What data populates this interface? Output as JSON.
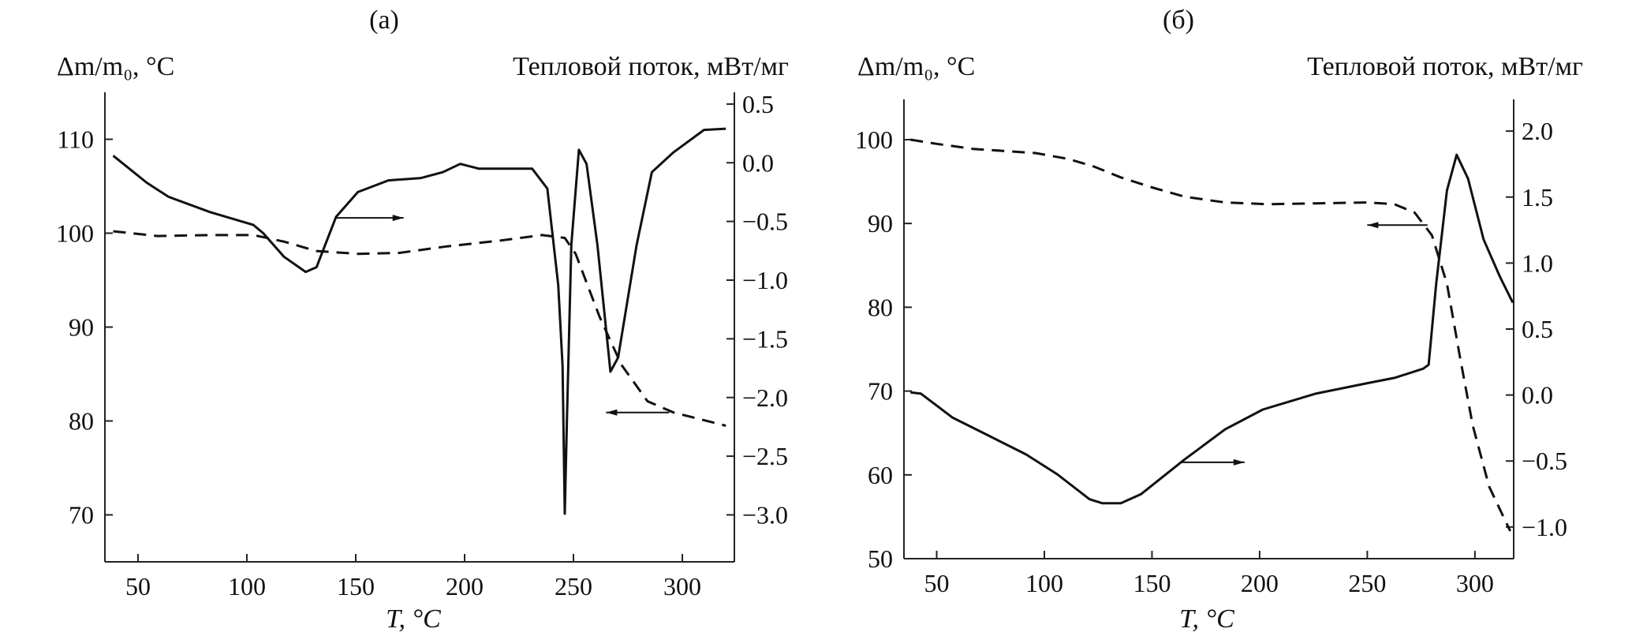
{
  "chart_data": [
    {
      "type": "line",
      "title": "(a)",
      "xlabel": "T, °C",
      "ylabel_left": "Δm/m₀, °C",
      "ylabel_right": "Тепловой поток, мВт/мг",
      "xlim": [
        34.8,
        323.9
      ],
      "ylim_left": [
        65,
        115
      ],
      "ylim_right": [
        -3.4,
        0.6
      ],
      "xticks": [
        50,
        100,
        150,
        200,
        250,
        300
      ],
      "xtick_labels": [
        "50",
        "100",
        "150",
        "200",
        "250",
        "300"
      ],
      "yticks_left": [
        70,
        80,
        90,
        100,
        110
      ],
      "ytick_labels_left": [
        "70",
        "80",
        "90",
        "100",
        "110"
      ],
      "yticks_right": [
        0.5,
        0.0,
        -0.5,
        -1.0,
        -1.5,
        -2.0,
        -2.5,
        -3.0
      ],
      "ytick_labels_right": [
        "0.5",
        "0.0",
        "−0.5",
        "−1.0",
        "−1.5",
        "−2.0",
        "−2.5",
        "−3.0"
      ],
      "grid": false,
      "series": [
        {
          "name": "heat flow",
          "axis": "right",
          "style": "solid",
          "x": [
            38.6,
            54,
            64,
            83,
            103,
            107.5,
            117,
            127,
            132,
            141,
            151,
            165,
            180,
            190,
            198,
            206.5,
            231,
            238,
            243,
            245,
            246,
            247,
            249,
            252.5,
            256,
            261,
            267,
            270.5,
            279,
            286,
            296,
            310,
            320
          ],
          "y": [
            0.06,
            -0.17,
            -0.29,
            -0.42,
            -0.53,
            -0.6,
            -0.8,
            -0.93,
            -0.89,
            -0.46,
            -0.25,
            -0.15,
            -0.13,
            -0.08,
            -0.01,
            -0.05,
            -0.05,
            -0.22,
            -1.04,
            -1.73,
            -2.99,
            -2.2,
            -0.7,
            0.11,
            -0.01,
            -0.7,
            -1.78,
            -1.66,
            -0.7,
            -0.08,
            0.09,
            0.28,
            0.29
          ]
        },
        {
          "name": "mass change",
          "axis": "left",
          "style": "dashed",
          "x": [
            38.6,
            59,
            83,
            103,
            117,
            132,
            151,
            170,
            192,
            216,
            235.5,
            246,
            251,
            262,
            272,
            284,
            296,
            320
          ],
          "y": [
            100.2,
            99.7,
            99.8,
            99.8,
            99.1,
            98.1,
            97.8,
            97.9,
            98.6,
            99.2,
            99.8,
            99.5,
            97.8,
            91.1,
            86.0,
            82.1,
            80.9,
            79.5
          ]
        }
      ],
      "annotations": [
        {
          "type": "arrow",
          "direction": "right",
          "axis": "right",
          "x_from": 141,
          "x_to": 172,
          "y": -0.47
        },
        {
          "type": "arrow",
          "direction": "left",
          "axis": "left",
          "x_from": 294,
          "x_to": 265,
          "y": 80.9
        }
      ]
    },
    {
      "type": "line",
      "title": "(б)",
      "xlabel": "T, °C",
      "ylabel_left": "Δm/m₀, °C",
      "ylabel_right": "Тепловой поток, мВт/мг",
      "xlim": [
        34.8,
        318
      ],
      "ylim_left": [
        50,
        104.8
      ],
      "ylim_right": [
        -1.24,
        2.24
      ],
      "xticks": [
        50,
        100,
        150,
        200,
        250,
        300
      ],
      "xtick_labels": [
        "50",
        "100",
        "150",
        "200",
        "250",
        "300"
      ],
      "yticks_left": [
        50,
        60,
        70,
        80,
        90,
        100
      ],
      "ytick_labels_left": [
        "50",
        "60",
        "70",
        "80",
        "90",
        "100"
      ],
      "yticks_right": [
        2.0,
        1.5,
        1.0,
        0.5,
        0.0,
        -0.5,
        -1.0
      ],
      "ytick_labels_right": [
        "2.0",
        "1.5",
        "1.0",
        "0.5",
        "0.0",
        "−0.5",
        "−1.0"
      ],
      "grid": false,
      "series": [
        {
          "name": "heat flow",
          "axis": "right",
          "style": "solid",
          "x": [
            37.8,
            42.7,
            57.3,
            72,
            91.5,
            106,
            121,
            127,
            135.5,
            145,
            165,
            184,
            201.5,
            226,
            250,
            262.6,
            276,
            278.5,
            282,
            287,
            291.5,
            296.8,
            304,
            311.5,
            317.6
          ],
          "y": [
            0.02,
            0.01,
            -0.17,
            -0.29,
            -0.45,
            -0.6,
            -0.79,
            -0.82,
            -0.82,
            -0.75,
            -0.49,
            -0.26,
            -0.11,
            0.01,
            0.09,
            0.13,
            0.2,
            0.23,
            0.84,
            1.55,
            1.82,
            1.64,
            1.18,
            0.9,
            0.7
          ]
        },
        {
          "name": "mass change",
          "axis": "left",
          "style": "dashed",
          "x": [
            37.8,
            50,
            67,
            96,
            111,
            123,
            135.5,
            150,
            165,
            184,
            204,
            226,
            250,
            262.6,
            272,
            280,
            287,
            293,
            299,
            306.6,
            316.4
          ],
          "y": [
            100,
            99.5,
            98.9,
            98.4,
            97.7,
            96.8,
            95.5,
            94.3,
            93.2,
            92.5,
            92.3,
            92.4,
            92.5,
            92.3,
            91.3,
            88.6,
            82.8,
            74.1,
            65.9,
            58.6,
            53.3
          ]
        }
      ],
      "annotations": [
        {
          "type": "arrow",
          "direction": "right",
          "axis": "right",
          "x_from": 163,
          "x_to": 193,
          "y": -0.51
        },
        {
          "type": "arrow",
          "direction": "left",
          "axis": "left",
          "x_from": 278,
          "x_to": 250,
          "y": 89.8
        }
      ]
    }
  ]
}
